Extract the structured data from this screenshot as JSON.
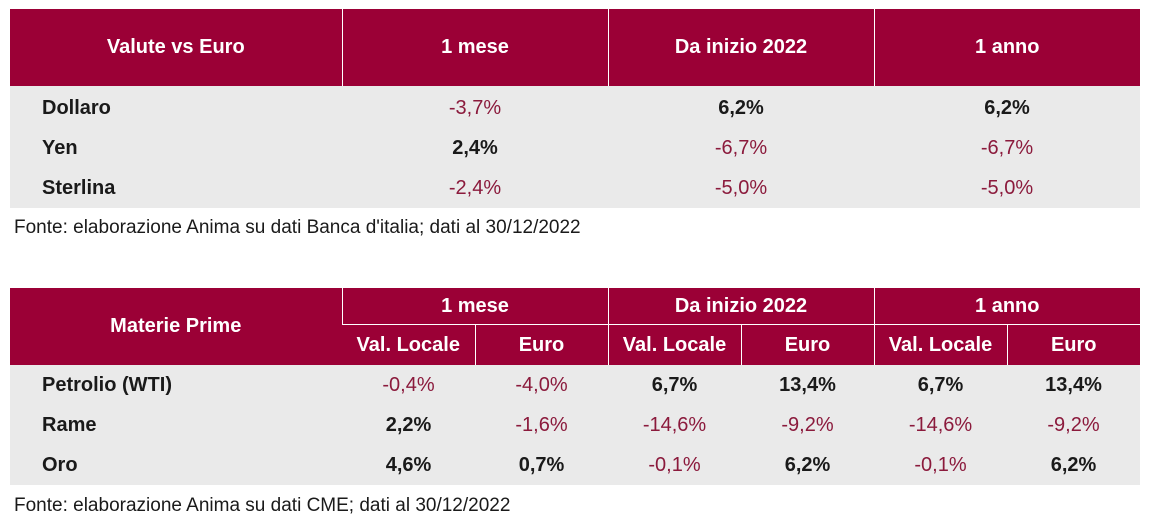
{
  "currencies": {
    "header": [
      "Valute vs Euro",
      "1 mese",
      "Da inizio 2022",
      "1 anno"
    ],
    "rows": [
      {
        "name": "Dollaro",
        "values": [
          "-3,7%",
          "6,2%",
          "6,2%"
        ]
      },
      {
        "name": "Yen",
        "values": [
          "2,4%",
          "-6,7%",
          "-6,7%"
        ]
      },
      {
        "name": "Sterlina",
        "values": [
          "-2,4%",
          "-5,0%",
          "-5,0%"
        ]
      }
    ],
    "source": "Fonte: elaborazione Anima su dati Banca d'italia; dati al 30/12/2022"
  },
  "commodities": {
    "header_label": "Materie Prime",
    "periods": [
      "1 mese",
      "Da inizio 2022",
      "1 anno"
    ],
    "subheaders": [
      "Val. Locale",
      "Euro",
      "Val. Locale",
      "Euro",
      "Val. Locale",
      "Euro"
    ],
    "rows": [
      {
        "name": "Petrolio (WTI)",
        "values": [
          "-0,4%",
          "-4,0%",
          "6,7%",
          "13,4%",
          "6,7%",
          "13,4%"
        ]
      },
      {
        "name": "Rame",
        "values": [
          "2,2%",
          "-1,6%",
          "-14,6%",
          "-9,2%",
          "-14,6%",
          "-9,2%"
        ]
      },
      {
        "name": "Oro",
        "values": [
          "4,6%",
          "0,7%",
          "-0,1%",
          "6,2%",
          "-0,1%",
          "6,2%"
        ]
      }
    ],
    "source": "Fonte: elaborazione Anima su dati CME; dati al 30/12/2022"
  },
  "colors": {
    "header_bg": "#9b0036",
    "row_bg": "#eaeaea",
    "negative_text": "#8b1a3c"
  }
}
